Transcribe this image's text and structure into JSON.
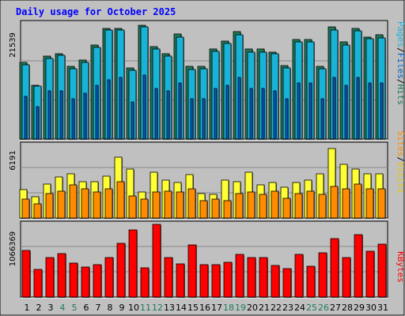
{
  "chart_data": [
    {
      "type": "bar",
      "title": "Daily usage for October 2025",
      "panel": "hits-files-pages",
      "max_label": "21539",
      "side_labels": [
        "Pages",
        "/",
        "Files",
        "/",
        "Hits"
      ],
      "colors": {
        "hits": "#1f7a5a",
        "files": "#1ab3d8",
        "pages": "#0060d0"
      },
      "categories": [
        "1",
        "2",
        "3",
        "4",
        "5",
        "6",
        "7",
        "8",
        "9",
        "10",
        "11",
        "12",
        "13",
        "14",
        "15",
        "16",
        "17",
        "18",
        "19",
        "20",
        "21",
        "22",
        "23",
        "24",
        "25",
        "26",
        "27",
        "28",
        "29",
        "30",
        "31"
      ],
      "weekend_days": [
        "4",
        "5",
        "11",
        "12",
        "18",
        "19",
        "25",
        "26"
      ],
      "series": [
        {
          "name": "Hits",
          "values": [
            14300,
            10100,
            15500,
            16000,
            13500,
            14700,
            17600,
            20600,
            20700,
            13300,
            21200,
            17200,
            16000,
            19600,
            13500,
            13600,
            16800,
            18300,
            20000,
            16800,
            16800,
            16300,
            13700,
            18600,
            18600,
            13600,
            20900,
            18100,
            20700,
            19100,
            19500
          ]
        },
        {
          "name": "Files",
          "values": [
            13800,
            9900,
            15000,
            15600,
            13100,
            14300,
            17100,
            20300,
            20300,
            12900,
            20900,
            16800,
            15500,
            19000,
            13000,
            13100,
            16400,
            17800,
            19400,
            16300,
            16300,
            15900,
            13300,
            18200,
            18200,
            13100,
            20300,
            17600,
            20200,
            18700,
            18900
          ]
        },
        {
          "name": "Pages",
          "values": [
            8000,
            6000,
            9000,
            9000,
            7500,
            8500,
            10000,
            11000,
            11500,
            7000,
            12000,
            9500,
            9000,
            10500,
            7500,
            7500,
            9500,
            10000,
            11500,
            9500,
            9500,
            9000,
            7500,
            10500,
            10500,
            7500,
            11500,
            10000,
            11500,
            10500,
            10500
          ]
        }
      ]
    },
    {
      "type": "bar",
      "panel": "visits-sites",
      "max_label": "6191",
      "side_labels": [
        "Sites",
        "/",
        "Visits"
      ],
      "colors": {
        "visits": "#ffff33",
        "sites": "#ff8c00"
      },
      "categories": [
        "1",
        "2",
        "3",
        "4",
        "5",
        "6",
        "7",
        "8",
        "9",
        "10",
        "11",
        "12",
        "13",
        "14",
        "15",
        "16",
        "17",
        "18",
        "19",
        "20",
        "21",
        "22",
        "23",
        "24",
        "25",
        "26",
        "27",
        "28",
        "29",
        "30",
        "31"
      ],
      "series": [
        {
          "name": "Visits",
          "values": [
            2400,
            1800,
            2900,
            3500,
            3800,
            3100,
            3100,
            3600,
            5200,
            4200,
            2200,
            3900,
            3200,
            3000,
            3700,
            2100,
            2000,
            3200,
            3100,
            3900,
            2800,
            3000,
            2600,
            3000,
            3200,
            3800,
            5900,
            4600,
            4200,
            3800,
            3800
          ]
        },
        {
          "name": "Sites",
          "values": [
            1600,
            1200,
            2100,
            2300,
            2800,
            2500,
            2200,
            2500,
            3100,
            1900,
            1600,
            2200,
            2300,
            2200,
            2500,
            1500,
            1600,
            1500,
            2100,
            2200,
            2000,
            2300,
            1700,
            2100,
            2300,
            2000,
            2700,
            2500,
            2900,
            2500,
            2500
          ]
        }
      ]
    },
    {
      "type": "bar",
      "panel": "kbytes",
      "max_label": "1066369",
      "side_labels": [
        "KBytes"
      ],
      "colors": {
        "kbytes": "#ff0000"
      },
      "categories": [
        "1",
        "2",
        "3",
        "4",
        "5",
        "6",
        "7",
        "8",
        "9",
        "10",
        "11",
        "12",
        "13",
        "14",
        "15",
        "16",
        "17",
        "18",
        "19",
        "20",
        "21",
        "22",
        "23",
        "24",
        "25",
        "26",
        "27",
        "28",
        "29",
        "30",
        "31"
      ],
      "series": [
        {
          "name": "KBytes",
          "values": [
            680000,
            410000,
            580000,
            640000,
            500000,
            440000,
            480000,
            580000,
            790000,
            980000,
            430000,
            1066000,
            580000,
            490000,
            760000,
            470000,
            470000,
            510000,
            630000,
            580000,
            580000,
            460000,
            420000,
            630000,
            450000,
            650000,
            860000,
            580000,
            910000,
            670000,
            780000
          ]
        }
      ]
    }
  ]
}
